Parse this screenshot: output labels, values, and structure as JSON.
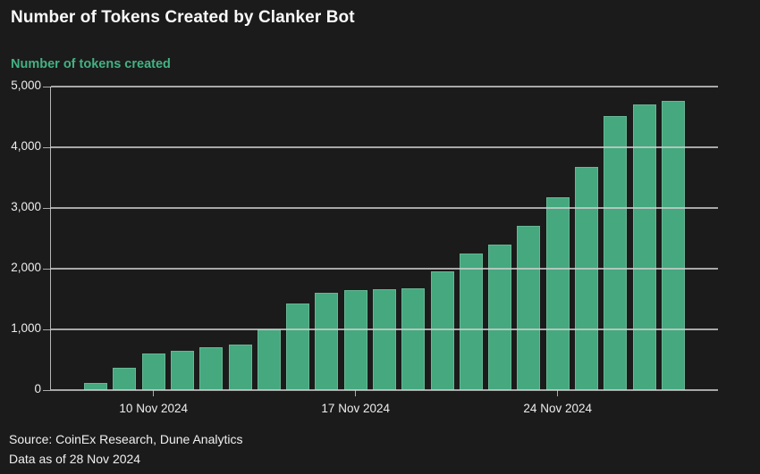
{
  "title": "Number of Tokens Created by Clanker Bot",
  "subtitle": "Number of tokens created",
  "source_line1": "Source: CoinEx Research, Dune Analytics",
  "source_line2": "Data as of 28 Nov 2024",
  "colors": {
    "background": "#1b1b1b",
    "bar": "#45a87e",
    "subtitle_green": "#44b183",
    "grid": "#cfcfcf",
    "text": "#ededed"
  },
  "chart_data": {
    "type": "bar",
    "title": "Number of Tokens Created by Clanker Bot",
    "ylabel": "Number of tokens created",
    "xlabel": "",
    "grid": true,
    "legend": "none",
    "ylim": [
      0,
      5000
    ],
    "y_ticks": [
      0,
      1000,
      2000,
      3000,
      4000,
      5000
    ],
    "y_tick_labels": [
      "0",
      "1,000",
      "2,000",
      "3,000",
      "4,000",
      "5,000"
    ],
    "categories": [
      "8 Nov 2024",
      "9 Nov 2024",
      "10 Nov 2024",
      "11 Nov 2024",
      "12 Nov 2024",
      "13 Nov 2024",
      "14 Nov 2024",
      "15 Nov 2024",
      "16 Nov 2024",
      "17 Nov 2024",
      "18 Nov 2024",
      "19 Nov 2024",
      "20 Nov 2024",
      "21 Nov 2024",
      "22 Nov 2024",
      "23 Nov 2024",
      "24 Nov 2024",
      "25 Nov 2024",
      "26 Nov 2024",
      "27 Nov 2024",
      "28 Nov 2024"
    ],
    "values": [
      120,
      370,
      610,
      650,
      700,
      745,
      1000,
      1420,
      1610,
      1645,
      1660,
      1680,
      1960,
      2250,
      2400,
      2700,
      3170,
      3680,
      4520,
      4700,
      4760
    ],
    "x_ticks": [
      {
        "index": 2,
        "label": "10 Nov 2024"
      },
      {
        "index": 9,
        "label": "17 Nov 2024"
      },
      {
        "index": 16,
        "label": "24 Nov 2024"
      }
    ]
  }
}
